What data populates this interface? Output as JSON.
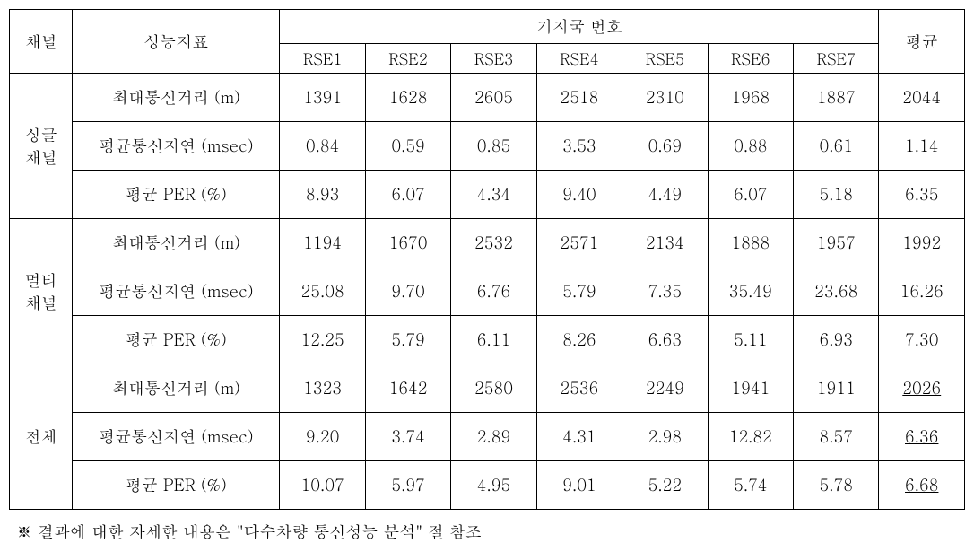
{
  "headers": {
    "channel": "채널",
    "metric": "성능지표",
    "station_group": "기지국 번호",
    "average": "평균",
    "rse": [
      "RSE1",
      "RSE2",
      "RSE3",
      "RSE4",
      "RSE5",
      "RSE6",
      "RSE7"
    ]
  },
  "channels": [
    {
      "name": "싱글\n채널",
      "rows": [
        {
          "metric": "최대통신거리 (m)",
          "values": [
            "1391",
            "1628",
            "2605",
            "2518",
            "2310",
            "1968",
            "1887"
          ],
          "avg": "2044",
          "avg_underlined": false
        },
        {
          "metric": "평균통신지연 (msec)",
          "values": [
            "0.84",
            "0.59",
            "0.85",
            "3.53",
            "0.69",
            "0.88",
            "0.61"
          ],
          "avg": "1.14",
          "avg_underlined": false
        },
        {
          "metric": "평균 PER (%)",
          "values": [
            "8.93",
            "6.07",
            "4.34",
            "9.40",
            "4.49",
            "6.07",
            "5.18"
          ],
          "avg": "6.35",
          "avg_underlined": false
        }
      ]
    },
    {
      "name": "멀티\n채널",
      "rows": [
        {
          "metric": "최대통신거리 (m)",
          "values": [
            "1194",
            "1670",
            "2532",
            "2571",
            "2134",
            "1888",
            "1957"
          ],
          "avg": "1992",
          "avg_underlined": false
        },
        {
          "metric": "평균통신지연 (msec)",
          "values": [
            "25.08",
            "9.70",
            "6.76",
            "5.79",
            "7.35",
            "35.49",
            "23.68"
          ],
          "avg": "16.26",
          "avg_underlined": false
        },
        {
          "metric": "평균 PER (%)",
          "values": [
            "12.25",
            "5.79",
            "6.11",
            "8.26",
            "6.63",
            "5.11",
            "6.93"
          ],
          "avg": "7.30",
          "avg_underlined": false
        }
      ]
    },
    {
      "name": "전체",
      "rows": [
        {
          "metric": "최대통신거리 (m)",
          "values": [
            "1323",
            "1642",
            "2580",
            "2536",
            "2249",
            "1941",
            "1911"
          ],
          "avg": "2026",
          "avg_underlined": true
        },
        {
          "metric": "평균통신지연 (msec)",
          "values": [
            "9.20",
            "3.74",
            "2.89",
            "4.31",
            "2.98",
            "12.82",
            "8.57"
          ],
          "avg": "6.36",
          "avg_underlined": true
        },
        {
          "metric": "평균 PER (%)",
          "values": [
            "10.07",
            "5.97",
            "4.95",
            "9.01",
            "5.22",
            "5.74",
            "5.78"
          ],
          "avg": "6.68",
          "avg_underlined": true
        }
      ]
    }
  ],
  "footnote": "※  결과에 대한 자세한 내용은 \"다수차량 통신성능 분석\" 절 참조",
  "style": {
    "border_color": "#000000",
    "background_color": "#ffffff",
    "text_color": "#000000",
    "font_size_header": 18,
    "font_size_data": 18,
    "font_size_footnote": 18
  }
}
